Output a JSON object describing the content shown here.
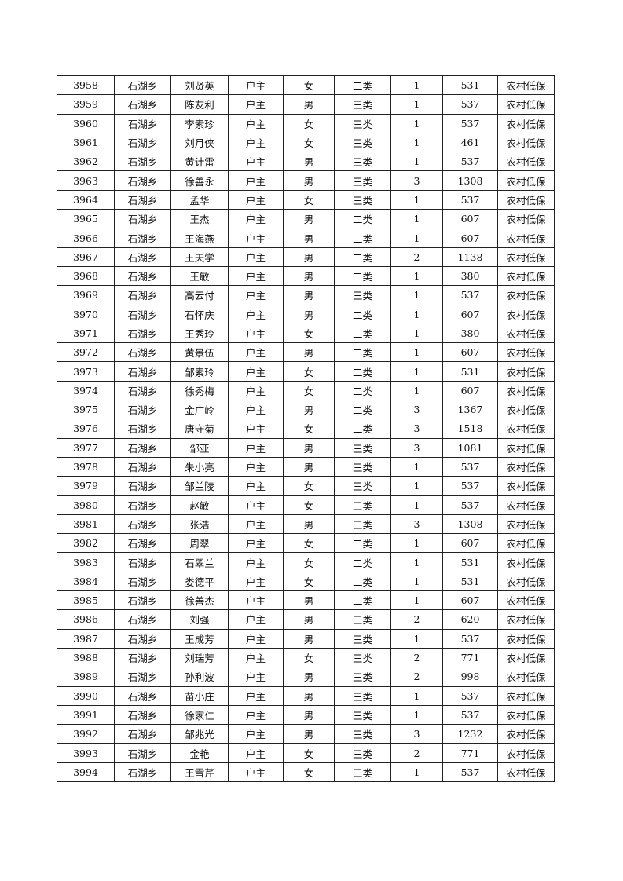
{
  "rows": [
    [
      "3958",
      "石湖乡",
      "刘贤英",
      "户主",
      "女",
      "二类",
      "1",
      "531",
      "农村低保"
    ],
    [
      "3959",
      "石湖乡",
      "陈友利",
      "户主",
      "男",
      "三类",
      "1",
      "537",
      "农村低保"
    ],
    [
      "3960",
      "石湖乡",
      "李素珍",
      "户主",
      "女",
      "三类",
      "1",
      "537",
      "农村低保"
    ],
    [
      "3961",
      "石湖乡",
      "刘月侠",
      "户主",
      "女",
      "三类",
      "1",
      "461",
      "农村低保"
    ],
    [
      "3962",
      "石湖乡",
      "黄计雷",
      "户主",
      "男",
      "三类",
      "1",
      "537",
      "农村低保"
    ],
    [
      "3963",
      "石湖乡",
      "徐善永",
      "户主",
      "男",
      "三类",
      "3",
      "1308",
      "农村低保"
    ],
    [
      "3964",
      "石湖乡",
      "孟华",
      "户主",
      "女",
      "三类",
      "1",
      "537",
      "农村低保"
    ],
    [
      "3965",
      "石湖乡",
      "王杰",
      "户主",
      "男",
      "二类",
      "1",
      "607",
      "农村低保"
    ],
    [
      "3966",
      "石湖乡",
      "王海燕",
      "户主",
      "男",
      "二类",
      "1",
      "607",
      "农村低保"
    ],
    [
      "3967",
      "石湖乡",
      "王天学",
      "户主",
      "男",
      "二类",
      "2",
      "1138",
      "农村低保"
    ],
    [
      "3968",
      "石湖乡",
      "王敏",
      "户主",
      "男",
      "二类",
      "1",
      "380",
      "农村低保"
    ],
    [
      "3969",
      "石湖乡",
      "高云付",
      "户主",
      "男",
      "三类",
      "1",
      "537",
      "农村低保"
    ],
    [
      "3970",
      "石湖乡",
      "石怀庆",
      "户主",
      "男",
      "二类",
      "1",
      "607",
      "农村低保"
    ],
    [
      "3971",
      "石湖乡",
      "王秀玲",
      "户主",
      "女",
      "二类",
      "1",
      "380",
      "农村低保"
    ],
    [
      "3972",
      "石湖乡",
      "黄景伍",
      "户主",
      "男",
      "二类",
      "1",
      "607",
      "农村低保"
    ],
    [
      "3973",
      "石湖乡",
      "邹素玲",
      "户主",
      "女",
      "二类",
      "1",
      "531",
      "农村低保"
    ],
    [
      "3974",
      "石湖乡",
      "徐秀梅",
      "户主",
      "女",
      "二类",
      "1",
      "607",
      "农村低保"
    ],
    [
      "3975",
      "石湖乡",
      "金广岭",
      "户主",
      "男",
      "二类",
      "3",
      "1367",
      "农村低保"
    ],
    [
      "3976",
      "石湖乡",
      "唐守菊",
      "户主",
      "女",
      "二类",
      "3",
      "1518",
      "农村低保"
    ],
    [
      "3977",
      "石湖乡",
      "邹亚",
      "户主",
      "男",
      "三类",
      "3",
      "1081",
      "农村低保"
    ],
    [
      "3978",
      "石湖乡",
      "朱小亮",
      "户主",
      "男",
      "三类",
      "1",
      "537",
      "农村低保"
    ],
    [
      "3979",
      "石湖乡",
      "邹兰陵",
      "户主",
      "女",
      "三类",
      "1",
      "537",
      "农村低保"
    ],
    [
      "3980",
      "石湖乡",
      "赵敏",
      "户主",
      "女",
      "三类",
      "1",
      "537",
      "农村低保"
    ],
    [
      "3981",
      "石湖乡",
      "张浩",
      "户主",
      "男",
      "三类",
      "3",
      "1308",
      "农村低保"
    ],
    [
      "3982",
      "石湖乡",
      "周翠",
      "户主",
      "女",
      "二类",
      "1",
      "607",
      "农村低保"
    ],
    [
      "3983",
      "石湖乡",
      "石翠兰",
      "户主",
      "女",
      "二类",
      "1",
      "531",
      "农村低保"
    ],
    [
      "3984",
      "石湖乡",
      "娄德平",
      "户主",
      "女",
      "二类",
      "1",
      "531",
      "农村低保"
    ],
    [
      "3985",
      "石湖乡",
      "徐善杰",
      "户主",
      "男",
      "二类",
      "1",
      "607",
      "农村低保"
    ],
    [
      "3986",
      "石湖乡",
      "刘强",
      "户主",
      "男",
      "三类",
      "2",
      "620",
      "农村低保"
    ],
    [
      "3987",
      "石湖乡",
      "王成芳",
      "户主",
      "男",
      "三类",
      "1",
      "537",
      "农村低保"
    ],
    [
      "3988",
      "石湖乡",
      "刘瑞芳",
      "户主",
      "女",
      "三类",
      "2",
      "771",
      "农村低保"
    ],
    [
      "3989",
      "石湖乡",
      "孙利波",
      "户主",
      "男",
      "三类",
      "2",
      "998",
      "农村低保"
    ],
    [
      "3990",
      "石湖乡",
      "苗小庄",
      "户主",
      "男",
      "三类",
      "1",
      "537",
      "农村低保"
    ],
    [
      "3991",
      "石湖乡",
      "徐家仁",
      "户主",
      "男",
      "三类",
      "1",
      "537",
      "农村低保"
    ],
    [
      "3992",
      "石湖乡",
      "邹兆光",
      "户主",
      "男",
      "三类",
      "3",
      "1232",
      "农村低保"
    ],
    [
      "3993",
      "石湖乡",
      "金艳",
      "户主",
      "女",
      "三类",
      "2",
      "771",
      "农村低保"
    ],
    [
      "3994",
      "石湖乡",
      "王雪芹",
      "户主",
      "女",
      "三类",
      "1",
      "537",
      "农村低保"
    ]
  ]
}
